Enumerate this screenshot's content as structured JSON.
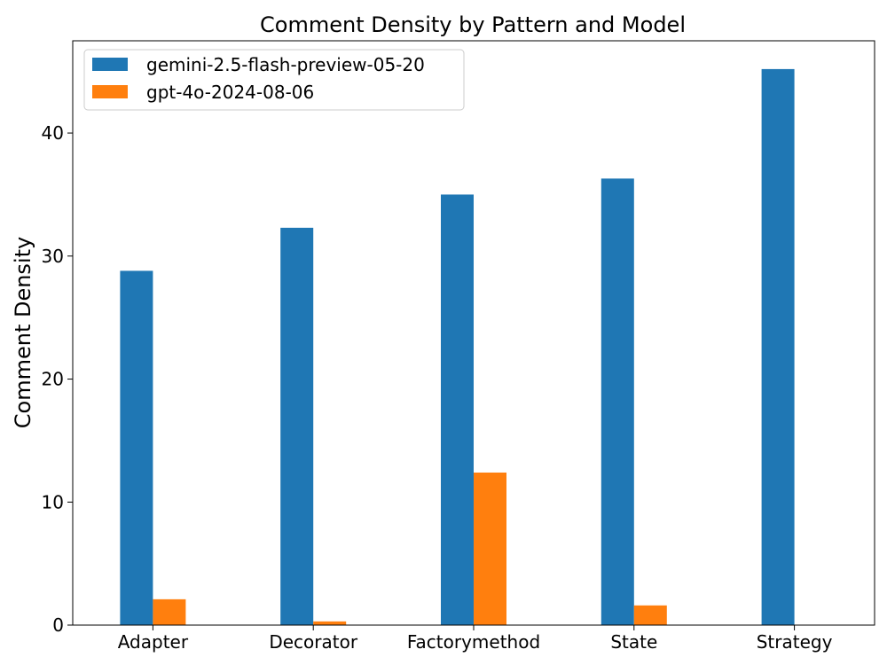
{
  "chart_data": {
    "type": "bar",
    "title": "Comment Density by Pattern and Model",
    "xlabel": "",
    "ylabel": "Comment Density",
    "categories": [
      "Adapter",
      "Decorator",
      "Factorymethod",
      "State",
      "Strategy"
    ],
    "series": [
      {
        "name": "gemini-2.5-flash-preview-05-20",
        "color": "#1f77b4",
        "values": [
          28.8,
          32.3,
          35.0,
          36.3,
          45.2
        ]
      },
      {
        "name": "gpt-4o-2024-08-06",
        "color": "#ff7f0e",
        "values": [
          2.1,
          0.3,
          12.4,
          1.6,
          0.0
        ]
      }
    ],
    "ylim": [
      0,
      47.5
    ],
    "yticks": [
      0,
      10,
      20,
      30,
      40
    ],
    "grid": false,
    "legend_position": "top-left"
  }
}
